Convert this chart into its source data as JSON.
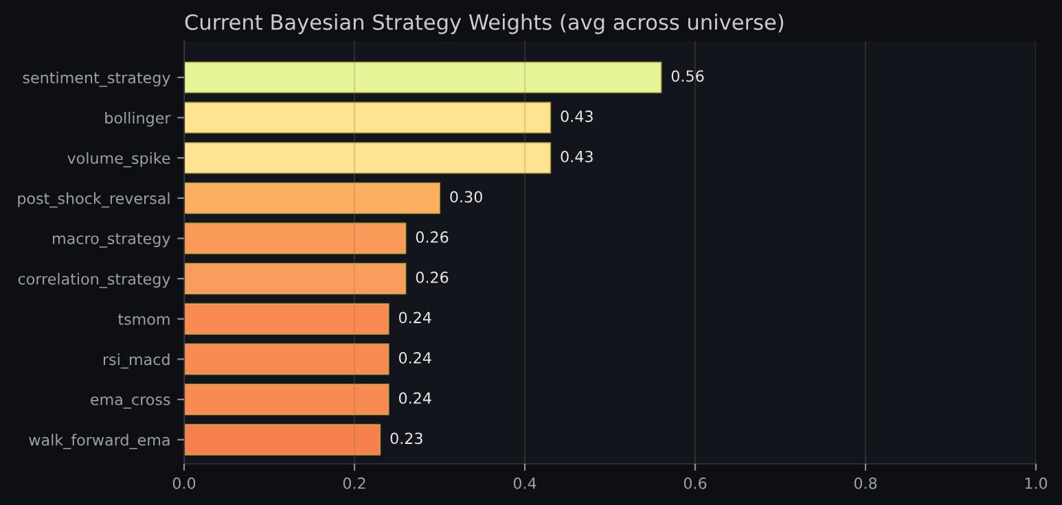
{
  "chart_data": {
    "type": "bar",
    "orientation": "horizontal",
    "title": "Current Bayesian Strategy Weights (avg across universe)",
    "categories": [
      "sentiment_strategy",
      "bollinger",
      "volume_spike",
      "post_shock_reversal",
      "macro_strategy",
      "correlation_strategy",
      "tsmom",
      "rsi_macd",
      "ema_cross",
      "walk_forward_ema"
    ],
    "values": [
      0.56,
      0.43,
      0.43,
      0.3,
      0.26,
      0.26,
      0.24,
      0.24,
      0.24,
      0.23
    ],
    "colors": [
      "#e6f598",
      "#fee491",
      "#fee491",
      "#fdae61",
      "#f99a58",
      "#fa9d5c",
      "#f88a52",
      "#f88a52",
      "#f88a52",
      "#f7814c"
    ],
    "xlim": [
      0,
      1
    ],
    "xticks": [
      {
        "value": 0,
        "label": "0.0"
      },
      0.2,
      0.4,
      0.6,
      0.8,
      {
        "value": 1,
        "label": "1.0"
      }
    ],
    "value_labels": [
      "0.56",
      "0.43",
      "0.43",
      "0.30",
      "0.26",
      "0.26",
      "0.24",
      "0.24",
      "0.24",
      "0.23"
    ],
    "grid": "x"
  }
}
